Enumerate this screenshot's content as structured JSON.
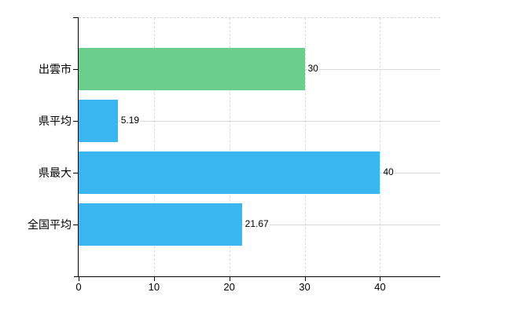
{
  "chart_data": {
    "type": "bar",
    "orientation": "horizontal",
    "title": "",
    "categories": [
      "出雲市",
      "県平均",
      "県最大",
      "全国平均"
    ],
    "values": [
      30,
      5.19,
      40,
      21.67
    ],
    "value_labels": [
      "30",
      "5.19",
      "40",
      "21.67"
    ],
    "bar_colors": [
      "#6cce8c",
      "#3bb6f0",
      "#3bb6f0",
      "#3bb6f0"
    ],
    "x_ticks": [
      "0",
      "10",
      "20",
      "30",
      "40"
    ],
    "x_tick_values": [
      0,
      10,
      20,
      30,
      40
    ],
    "xlim": [
      0,
      48
    ],
    "xlabel": "",
    "ylabel": "",
    "grid": "on",
    "legend": "none",
    "colors": {
      "axis": "#000000",
      "grid": "#d9d9d9",
      "text": "#000000",
      "background": "#ffffff",
      "bar_blue": "#3bb6f0",
      "bar_green": "#6cce8c"
    }
  }
}
